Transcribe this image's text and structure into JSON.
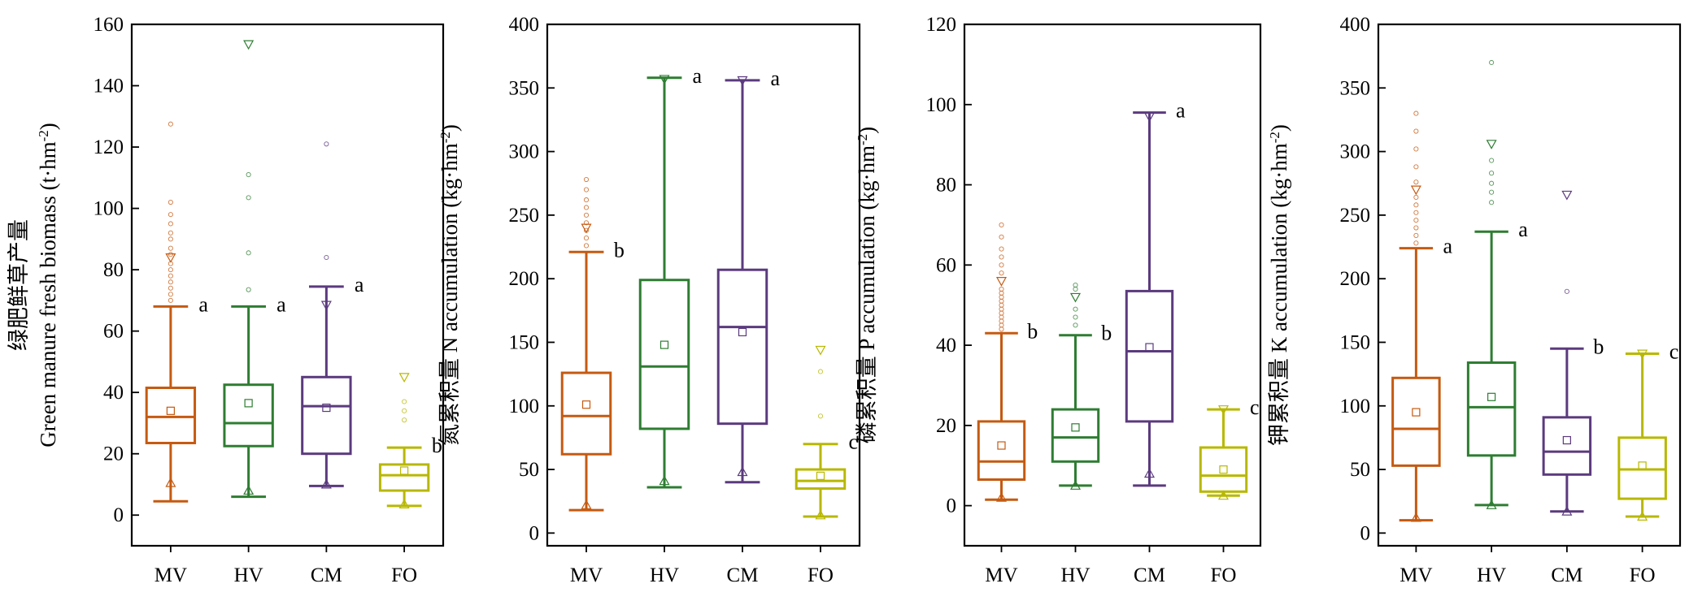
{
  "chart_data": [
    {
      "type": "box",
      "ylabel_cn": "绿肥鲜草产量",
      "ylabel_en": "Green manure fresh biomass (t·hm",
      "ylabel_sup": "-2",
      "ylabel_end": ")",
      "ylim": [
        -10,
        160
      ],
      "yticks": [
        0,
        20,
        40,
        60,
        80,
        100,
        120,
        140,
        160
      ],
      "categories": [
        "MV",
        "HV",
        "CM",
        "FO"
      ],
      "boxes": [
        {
          "category": "MV",
          "color": "#C55A11",
          "min": 4.5,
          "q1": 23.5,
          "median": 32,
          "q3": 41.5,
          "max": 68,
          "mean": 34,
          "p1": 10.5,
          "p99": 84,
          "outliers": [
            70,
            72,
            74,
            76,
            78,
            80,
            82,
            85,
            87,
            90,
            92,
            95,
            98,
            102,
            127.5
          ]
        },
        {
          "category": "HV",
          "color": "#2E7D32",
          "min": 6,
          "q1": 22.5,
          "median": 30,
          "q3": 42.5,
          "max": 68,
          "mean": 36.5,
          "p1": 8,
          "p99": 153.5,
          "outliers": [
            73.5,
            85.5,
            103.5,
            111
          ]
        },
        {
          "category": "CM",
          "color": "#5B3A7E",
          "min": 9.5,
          "q1": 20,
          "median": 35.5,
          "q3": 45,
          "max": 74.5,
          "mean": 35,
          "p1": 10,
          "p99": 68.5,
          "outliers": [
            84,
            121
          ]
        },
        {
          "category": "FO",
          "color": "#B8B800",
          "min": 3,
          "q1": 8,
          "median": 13,
          "q3": 16.5,
          "max": 22,
          "mean": 14.5,
          "p1": 3.5,
          "p99": 45,
          "outliers": [
            31,
            34,
            37
          ]
        }
      ],
      "significance": [
        "a",
        "a",
        "a",
        "b"
      ]
    },
    {
      "type": "box",
      "ylabel_cn": "氮累积量",
      "ylabel_en": "N accumulation (kg·hm",
      "ylabel_sup": "-2",
      "ylabel_end": ")",
      "ylim": [
        -10,
        400
      ],
      "yticks": [
        0,
        50,
        100,
        150,
        200,
        250,
        300,
        350,
        400
      ],
      "categories": [
        "MV",
        "HV",
        "CM",
        "FO"
      ],
      "boxes": [
        {
          "category": "MV",
          "color": "#C55A11",
          "min": 18,
          "q1": 62,
          "median": 92,
          "q3": 126,
          "max": 221,
          "mean": 101,
          "p1": 22,
          "p99": 240,
          "outliers": [
            226,
            232,
            238,
            244,
            250,
            256,
            262,
            270,
            278
          ]
        },
        {
          "category": "HV",
          "color": "#2E7D32",
          "min": 36,
          "q1": 82,
          "median": 131,
          "q3": 199,
          "max": 358,
          "mean": 148,
          "p1": 41,
          "p99": 357,
          "outliers": []
        },
        {
          "category": "CM",
          "color": "#5B3A7E",
          "min": 40,
          "q1": 86,
          "median": 162,
          "q3": 207,
          "max": 356,
          "mean": 158,
          "p1": 48,
          "p99": 356,
          "outliers": []
        },
        {
          "category": "FO",
          "color": "#B8B800",
          "min": 13,
          "q1": 35,
          "median": 41,
          "q3": 50,
          "max": 70,
          "mean": 45,
          "p1": 14,
          "p99": 144,
          "outliers": [
            92,
            127
          ]
        }
      ],
      "significance": [
        "b",
        "a",
        "a",
        "c"
      ]
    },
    {
      "type": "box",
      "ylabel_cn": "磷累积量",
      "ylabel_en": "P accumulation (kg·hm",
      "ylabel_sup": "-2",
      "ylabel_end": ")",
      "ylim": [
        -10,
        120
      ],
      "yticks": [
        0,
        20,
        40,
        60,
        80,
        100,
        120
      ],
      "categories": [
        "MV",
        "HV",
        "CM",
        "FO"
      ],
      "boxes": [
        {
          "category": "MV",
          "color": "#C55A11",
          "min": 1.5,
          "q1": 6.5,
          "median": 11,
          "q3": 21,
          "max": 43,
          "mean": 15,
          "p1": 2,
          "p99": 56,
          "outliers": [
            44,
            45,
            46,
            47,
            48,
            49,
            50,
            51,
            52,
            53,
            54,
            58,
            60,
            62,
            64,
            67,
            70
          ]
        },
        {
          "category": "HV",
          "color": "#2E7D32",
          "min": 5,
          "q1": 11,
          "median": 17,
          "q3": 24,
          "max": 42.5,
          "mean": 19.5,
          "p1": 5,
          "p99": 52,
          "outliers": [
            45,
            47,
            49,
            54,
            55
          ]
        },
        {
          "category": "CM",
          "color": "#5B3A7E",
          "min": 5,
          "q1": 21,
          "median": 38.5,
          "q3": 53.5,
          "max": 98,
          "mean": 39.5,
          "p1": 8,
          "p99": 97,
          "outliers": []
        },
        {
          "category": "FO",
          "color": "#B8B800",
          "min": 2.5,
          "q1": 3.5,
          "median": 7.5,
          "q3": 14.5,
          "max": 24,
          "mean": 9,
          "p1": 2.5,
          "p99": 24,
          "outliers": []
        }
      ],
      "significance": [
        "b",
        "b",
        "a",
        "c"
      ]
    },
    {
      "type": "box",
      "ylabel_cn": "钾累积量",
      "ylabel_en": "K accumulation (kg·hm",
      "ylabel_sup": "-2",
      "ylabel_end": ")",
      "ylim": [
        -10,
        400
      ],
      "yticks": [
        0,
        50,
        100,
        150,
        200,
        250,
        300,
        350,
        400
      ],
      "categories": [
        "MV",
        "HV",
        "CM",
        "FO"
      ],
      "boxes": [
        {
          "category": "MV",
          "color": "#C55A11",
          "min": 10,
          "q1": 53,
          "median": 82,
          "q3": 122,
          "max": 224,
          "mean": 95,
          "p1": 12,
          "p99": 270,
          "outliers": [
            228,
            234,
            240,
            246,
            252,
            258,
            264,
            276,
            288,
            302,
            316,
            330
          ]
        },
        {
          "category": "HV",
          "color": "#2E7D32",
          "min": 22,
          "q1": 61,
          "median": 99,
          "q3": 134,
          "max": 237,
          "mean": 107,
          "p1": 22,
          "p99": 306,
          "outliers": [
            260,
            268,
            275,
            283,
            293,
            370
          ]
        },
        {
          "category": "CM",
          "color": "#5B3A7E",
          "min": 17,
          "q1": 46,
          "median": 64,
          "q3": 91,
          "max": 145,
          "mean": 73,
          "p1": 17,
          "p99": 266,
          "outliers": [
            190
          ]
        },
        {
          "category": "FO",
          "color": "#B8B800",
          "min": 13,
          "q1": 27,
          "median": 50,
          "q3": 75,
          "max": 141,
          "mean": 53,
          "p1": 13,
          "p99": 141,
          "outliers": []
        }
      ],
      "significance": [
        "a",
        "a",
        "b",
        "c"
      ]
    }
  ]
}
